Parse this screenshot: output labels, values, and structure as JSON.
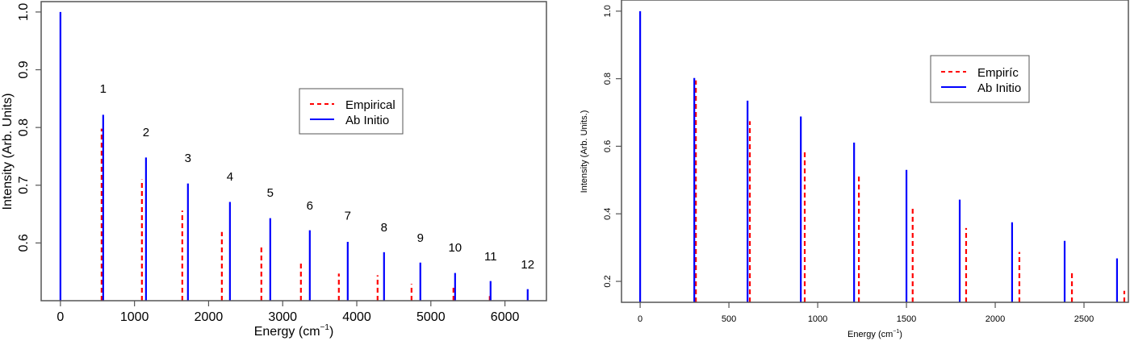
{
  "chart_data": [
    {
      "type": "bar",
      "subtype": "stick-spectrum",
      "title": "",
      "xlabel": "Energy (cm⁻¹)",
      "ylabel": "Intensity (Arb. Units)",
      "xlim": [
        -260,
        6560
      ],
      "ylim": [
        0.5,
        1.018
      ],
      "xticks": [
        0,
        1000,
        2000,
        3000,
        4000,
        5000,
        6000
      ],
      "xtick_labels": [
        "0",
        "1000",
        "2000",
        "3000",
        "4000",
        "5000",
        "6000"
      ],
      "yticks": [
        0.6,
        0.7,
        0.8,
        0.9,
        1.0
      ],
      "ytick_labels": [
        "0.6",
        "0.7",
        "0.8",
        "0.9",
        "1.0"
      ],
      "grid": false,
      "legend": {
        "position": "center-right",
        "entries": [
          "Empirical",
          "Ab Initio"
        ]
      },
      "series": [
        {
          "name": "Empirical",
          "style": "dashed",
          "color": "#ff0000",
          "x": [
            556,
            1100,
            1645,
            2179,
            2712,
            3246,
            3758,
            4281,
            4739,
            5305,
            5795
          ],
          "values": [
            0.798,
            0.71,
            0.656,
            0.619,
            0.594,
            0.565,
            0.547,
            0.544,
            0.529,
            0.524,
            0.508
          ]
        },
        {
          "name": "Ab Initio",
          "style": "solid",
          "color": "#0000ff",
          "x": [
            0,
            577,
            1155,
            1721,
            2288,
            2832,
            3366,
            3878,
            4368,
            4858,
            5327,
            5806,
            6307
          ],
          "values": [
            1.0,
            0.822,
            0.748,
            0.703,
            0.671,
            0.643,
            0.622,
            0.602,
            0.584,
            0.566,
            0.548,
            0.534,
            0.52
          ]
        }
      ],
      "annotations": [
        {
          "text": "1",
          "x": 577,
          "y": 0.86
        },
        {
          "text": "2",
          "x": 1155,
          "y": 0.785
        },
        {
          "text": "3",
          "x": 1721,
          "y": 0.74
        },
        {
          "text": "4",
          "x": 2288,
          "y": 0.708
        },
        {
          "text": "5",
          "x": 2832,
          "y": 0.68
        },
        {
          "text": "6",
          "x": 3366,
          "y": 0.658
        },
        {
          "text": "7",
          "x": 3878,
          "y": 0.64
        },
        {
          "text": "8",
          "x": 4368,
          "y": 0.62
        },
        {
          "text": "9",
          "x": 4858,
          "y": 0.602
        },
        {
          "text": "10",
          "x": 5327,
          "y": 0.585
        },
        {
          "text": "11",
          "x": 5806,
          "y": 0.57
        },
        {
          "text": "12",
          "x": 6307,
          "y": 0.556
        }
      ]
    },
    {
      "type": "bar",
      "subtype": "stick-spectrum",
      "title": "",
      "xlabel": "Energy (cm⁻¹)",
      "ylabel": "Intensity (Arb. Units.)",
      "xlim": [
        -105,
        2750
      ],
      "ylim": [
        0.138,
        1.033
      ],
      "xticks": [
        0,
        500,
        1000,
        1500,
        2000,
        2500
      ],
      "xtick_labels": [
        "0",
        "500",
        "1000",
        "1500",
        "2000",
        "2500"
      ],
      "yticks": [
        0.2,
        0.4,
        0.6,
        0.8,
        1.0
      ],
      "ytick_labels": [
        "0.2",
        "0.4",
        "0.6",
        "0.8",
        "1.0"
      ],
      "grid": false,
      "legend": {
        "position": "top-right",
        "entries": [
          "Empiríc",
          "Ab Initio"
        ]
      },
      "series": [
        {
          "name": "Empiríc",
          "style": "dashed",
          "color": "#ff0000",
          "x": [
            314,
            618,
            927,
            1232,
            1535,
            1836,
            2136,
            2432,
            2727
          ],
          "values": [
            0.795,
            0.674,
            0.582,
            0.513,
            0.423,
            0.358,
            0.287,
            0.225,
            0.172
          ]
        },
        {
          "name": "Ab Initio",
          "style": "solid",
          "color": "#0000ff",
          "x": [
            0,
            305,
            605,
            905,
            1205,
            1500,
            1800,
            2095,
            2391,
            2686
          ],
          "values": [
            1.0,
            0.802,
            0.735,
            0.688,
            0.611,
            0.53,
            0.442,
            0.375,
            0.32,
            0.268
          ]
        }
      ]
    }
  ],
  "colors": {
    "empirical": "#ff0000",
    "ab_initio": "#0000ff",
    "frame": "#555555"
  },
  "left": {
    "ylabel": "Intensity (Arb. Units)",
    "xlabel_main": "Energy (cm",
    "xlabel_sup": "−1",
    "xlabel_close": ")",
    "legend": {
      "empirical": "Empirical",
      "ab_initio": "Ab Initio"
    }
  },
  "right": {
    "ylabel": "Intensity (Arb. Units.)",
    "xlabel_main": "Energy (cm",
    "xlabel_sup": "−1",
    "xlabel_close": ")",
    "legend": {
      "empirical": "Empiríc",
      "ab_initio": "Ab Initio"
    }
  }
}
